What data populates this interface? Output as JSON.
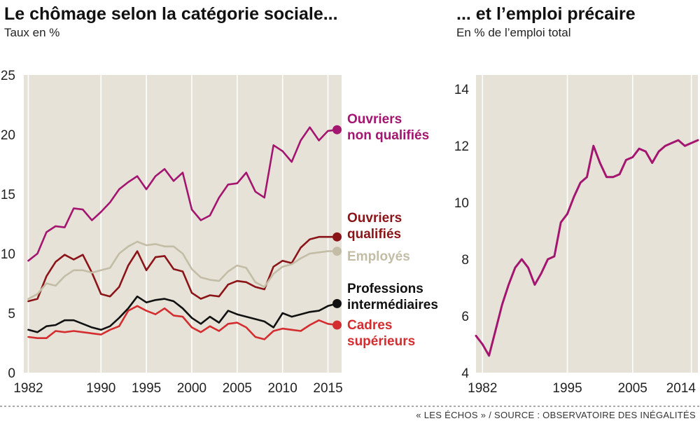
{
  "source": "« LES ÉCHOS » / SOURCE : OBSERVATOIRE DES INÉGALITÉS",
  "chart_data": [
    {
      "type": "line",
      "title": "Le chômage selon la catégorie sociale...",
      "subtitle": "Taux en %",
      "xlim": [
        1981.5,
        2016.5
      ],
      "ylim": [
        0,
        25
      ],
      "x_ticks": [
        1982,
        1990,
        1995,
        2000,
        2005,
        2010,
        2015
      ],
      "y_ticks": [
        0,
        5,
        10,
        15,
        20,
        25
      ],
      "grid": "vertical",
      "x": [
        1982,
        1983,
        1984,
        1985,
        1986,
        1987,
        1988,
        1989,
        1990,
        1991,
        1992,
        1993,
        1994,
        1995,
        1996,
        1997,
        1998,
        1999,
        2000,
        2001,
        2002,
        2003,
        2004,
        2005,
        2006,
        2007,
        2008,
        2009,
        2010,
        2011,
        2012,
        2013,
        2014,
        2015,
        2016
      ],
      "series": [
        {
          "name": "Ouvriers non qualifiés",
          "label_lines": [
            "Ouvriers",
            "non qualifiés"
          ],
          "color": "#a3156f",
          "values": [
            9.4,
            10.0,
            11.8,
            12.3,
            12.2,
            13.8,
            13.7,
            12.8,
            13.5,
            14.3,
            15.4,
            16.0,
            16.5,
            15.4,
            16.5,
            17.1,
            16.1,
            16.8,
            13.7,
            12.8,
            13.2,
            14.7,
            15.8,
            15.9,
            16.8,
            15.2,
            14.7,
            19.1,
            18.6,
            17.7,
            19.5,
            20.6,
            19.5,
            20.3,
            20.4
          ]
        },
        {
          "name": "Ouvriers qualifiés",
          "label_lines": [
            "Ouvriers",
            "qualifiés"
          ],
          "color": "#8b1418",
          "values": [
            6.0,
            6.2,
            8.1,
            9.3,
            9.9,
            9.5,
            9.9,
            8.4,
            6.6,
            6.4,
            7.2,
            9.0,
            10.2,
            8.6,
            9.7,
            9.8,
            8.7,
            8.5,
            6.7,
            6.2,
            6.5,
            6.4,
            7.4,
            7.7,
            7.6,
            7.2,
            7.0,
            8.9,
            9.4,
            9.2,
            10.5,
            11.2,
            11.4,
            11.4,
            11.4
          ]
        },
        {
          "name": "Employés",
          "label_lines": [
            "Employés"
          ],
          "color": "#c3bda6",
          "values": [
            6.2,
            6.6,
            7.5,
            7.3,
            8.1,
            8.6,
            8.6,
            8.4,
            8.6,
            8.8,
            10.0,
            10.6,
            11.0,
            10.7,
            10.8,
            10.6,
            10.6,
            10.0,
            8.7,
            8.0,
            7.8,
            7.7,
            8.5,
            9.0,
            8.8,
            7.6,
            7.2,
            8.3,
            8.9,
            9.1,
            9.6,
            10.0,
            10.1,
            10.2,
            10.2
          ]
        },
        {
          "name": "Professions intermédiaires",
          "label_lines": [
            "Professions",
            "intermédiaires"
          ],
          "color": "#111111",
          "values": [
            3.6,
            3.4,
            3.9,
            4.0,
            4.4,
            4.4,
            4.1,
            3.8,
            3.6,
            3.9,
            4.6,
            5.4,
            6.4,
            5.9,
            6.1,
            6.2,
            6.0,
            5.4,
            4.6,
            4.1,
            4.7,
            4.2,
            5.2,
            4.9,
            4.7,
            4.5,
            4.3,
            3.8,
            5.0,
            4.7,
            4.9,
            5.1,
            5.2,
            5.6,
            5.8
          ]
        },
        {
          "name": "Cadres supérieurs",
          "label_lines": [
            "Cadres",
            "supérieurs"
          ],
          "color": "#d42d2f",
          "values": [
            3.0,
            2.9,
            2.9,
            3.5,
            3.4,
            3.5,
            3.4,
            3.3,
            3.2,
            3.6,
            3.9,
            5.2,
            5.6,
            5.2,
            4.9,
            5.4,
            4.8,
            4.7,
            3.8,
            3.4,
            3.9,
            3.5,
            4.1,
            4.2,
            3.8,
            3.0,
            2.8,
            3.5,
            3.7,
            3.6,
            3.5,
            4.0,
            4.4,
            4.1,
            4.0
          ]
        }
      ]
    },
    {
      "type": "line",
      "title": "... et l’emploi précaire",
      "subtitle": "En % de l’emploi total",
      "xlim": [
        1981,
        2015
      ],
      "ylim": [
        4,
        14.5
      ],
      "x_ticks": [
        1982,
        1995,
        2005,
        2014
      ],
      "y_ticks": [
        4,
        6,
        8,
        10,
        12,
        14
      ],
      "grid": "vertical",
      "series": [
        {
          "name": "",
          "color": "#a3156f",
          "x": [
            1981,
            1982,
            1983,
            1984,
            1985,
            1986,
            1987,
            1988,
            1989,
            1990,
            1991,
            1992,
            1993,
            1994,
            1995,
            1996,
            1997,
            1998,
            1999,
            2000,
            2001,
            2002,
            2003,
            2004,
            2005,
            2006,
            2007,
            2008,
            2009,
            2010,
            2011,
            2012,
            2013,
            2014,
            2015
          ],
          "values": [
            5.3,
            5.0,
            4.6,
            5.5,
            6.4,
            7.1,
            7.7,
            8.0,
            7.7,
            7.1,
            7.5,
            8.0,
            8.1,
            9.3,
            9.6,
            10.2,
            10.7,
            10.9,
            12.0,
            11.4,
            10.9,
            10.9,
            11.0,
            11.5,
            11.6,
            11.9,
            11.8,
            11.4,
            11.8,
            12.0,
            12.1,
            12.2,
            12.0,
            12.1,
            12.2
          ]
        }
      ]
    }
  ]
}
